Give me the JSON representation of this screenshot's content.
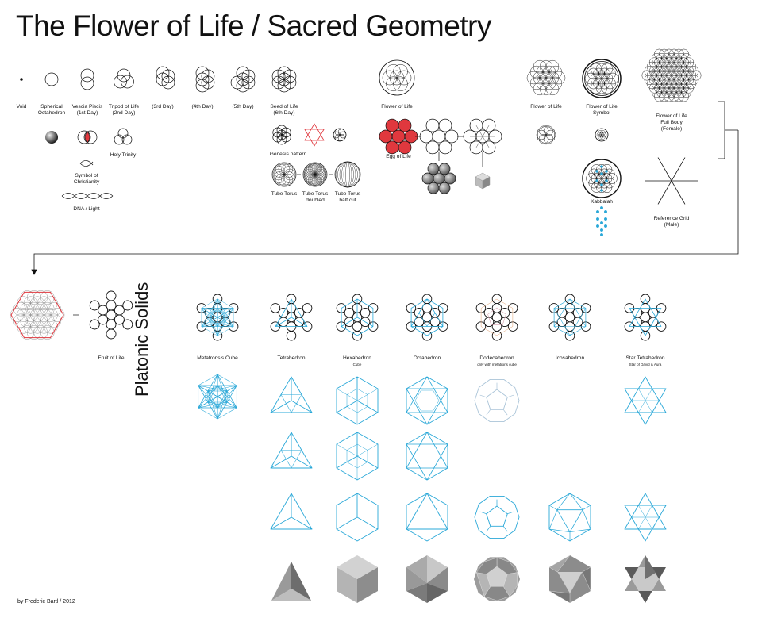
{
  "title": "The Flower of Life / Sacred Geometry",
  "credit": "by Frederic Bartl / 2012",
  "section_title": "Platonic Solids",
  "labels": {
    "void": "Void",
    "spherical_octahedron": "Spherical\nOctahedron",
    "vesica_piscis": "Vescia Piscis\n(1st Day)",
    "tripod": "Tripod of Life\n(2nd Day)",
    "day3": "(3rd Day)",
    "day4": "(4th Day)",
    "day5": "(5th Day)",
    "seed": "Seed of Life\n(6th Day)",
    "holy_trinity": "Holy Trinity",
    "symbol_christianity": "Symbol of\nChristianity",
    "dna": "DNA / Light",
    "genesis": "Genesis pattern",
    "tube_torus": "Tube Torus",
    "tube_torus_doubled": "Tube Torus\ndoubled",
    "tube_torus_half": "Tube Torus\nhalf cut",
    "flower_mid": "Flower of Life",
    "egg": "Egg of Life",
    "flower_right": "Flower of Life",
    "flower_symbol": "Flower of Life\nSymbol",
    "flower_full": "Flower of Life\nFull Body\n(Female)",
    "kabbalah": "Kabbalah",
    "reference_grid": "Reference Grid\n(Male)",
    "fruit": "Fruit of Life",
    "metatron": "Metatrons's Cube",
    "tetrahedron": "Tetrahedron",
    "hexahedron": "Hexahedron",
    "hexahedron_sub": "Cube",
    "octahedron": "Octahedron",
    "dodecahedron": "Dodecahedron",
    "dodecahedron_sub": "only with metatrons cube",
    "icosahedron": "Icosahedron",
    "star_tetrahedron": "Star Tetrahedron",
    "star_tetrahedron_sub": "Star of David & Aura"
  },
  "colors": {
    "accent_blue": "#2aa8d8",
    "accent_red": "#e0383e",
    "ink": "#111111"
  }
}
